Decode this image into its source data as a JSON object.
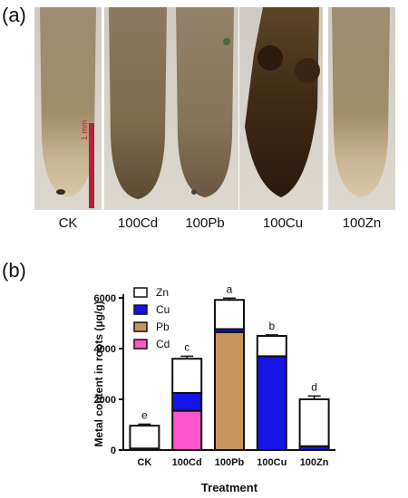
{
  "figure": {
    "panel_a_label": "(a)",
    "panel_b_label": "(b)",
    "root_labels": [
      "CK",
      "100Cd",
      "100Pb",
      "100Cu",
      "100Zn"
    ],
    "scale_bar_text": "1 mm"
  },
  "chart_data": {
    "type": "bar",
    "stacked": true,
    "categories": [
      "CK",
      "100Cd",
      "100Pb",
      "100Cu",
      "100Zn"
    ],
    "series": [
      {
        "name": "Cd",
        "color": "#ff55cc",
        "values": [
          0,
          1550,
          0,
          0,
          0
        ]
      },
      {
        "name": "Pb",
        "color": "#c7955a",
        "values": [
          0,
          0,
          4650,
          0,
          0
        ]
      },
      {
        "name": "Cu",
        "color": "#1515e8",
        "values": [
          60,
          700,
          120,
          3700,
          150
        ]
      },
      {
        "name": "Zn",
        "color": "#ffffff",
        "values": [
          900,
          1350,
          1150,
          800,
          1850
        ]
      }
    ],
    "totals": [
      960,
      3600,
      5920,
      4500,
      2000
    ],
    "error_bars": [
      60,
      100,
      70,
      40,
      130
    ],
    "significance_letters": [
      "e",
      "c",
      "a",
      "b",
      "d"
    ],
    "legend_order": [
      "Zn",
      "Cu",
      "Pb",
      "Cd"
    ],
    "legend_position": "top-left",
    "xlabel": "Treatment",
    "ylabel": "Metal content in roots (μg/g)",
    "ylim": [
      0,
      6000
    ],
    "yticks": [
      0,
      2000,
      4000,
      6000
    ],
    "grid": false
  }
}
